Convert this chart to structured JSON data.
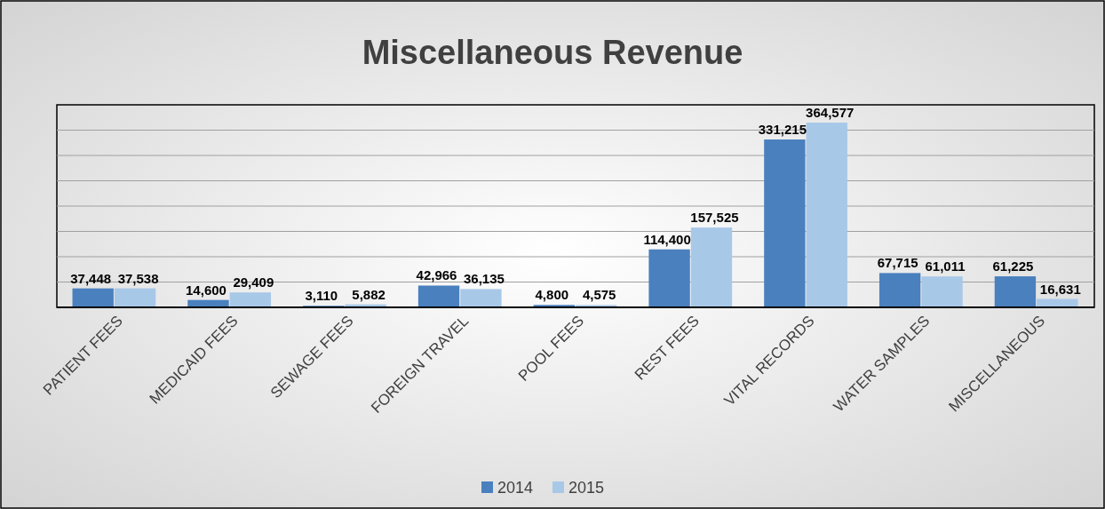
{
  "chart_data": {
    "type": "bar",
    "title": "Miscellaneous Revenue",
    "categories": [
      "PATIENT FEES",
      "MEDICAID FEES",
      "SEWAGE FEES",
      "FOREIGN TRAVEL",
      "POOL FEES",
      "REST FEES",
      "VITAL RECORDS",
      "WATER SAMPLES",
      "MISCELLANEOUS"
    ],
    "series": [
      {
        "name": "2014",
        "color": "#4a80be",
        "values": [
          37448,
          14600,
          3110,
          42966,
          4800,
          114400,
          331215,
          67715,
          61225
        ],
        "value_labels": [
          "37,448",
          "14,600",
          "3,110",
          "42,966",
          "4,800",
          "114,400",
          "331,215",
          "67,715",
          "61,225"
        ]
      },
      {
        "name": "2015",
        "color": "#a8c8e8",
        "values": [
          37538,
          29409,
          5882,
          36135,
          4575,
          157525,
          364577,
          61011,
          16631
        ],
        "value_labels": [
          "37,538",
          "29,409",
          "5,882",
          "36,135",
          "4,575",
          "157,525",
          "364,577",
          "61,011",
          "16,631"
        ]
      }
    ],
    "tick_labels": "x",
    "grid": "y",
    "legend": "bottom"
  }
}
